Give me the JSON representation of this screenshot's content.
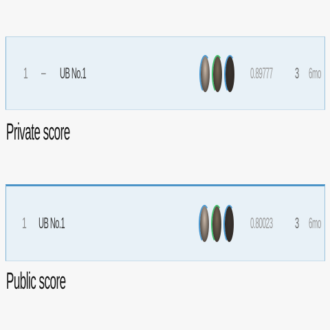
{
  "sections": [
    {
      "id": "private",
      "caption": "Private score",
      "row": {
        "rank": "1",
        "delta": "–",
        "team": "UB No.1",
        "score": "0.89777",
        "entries": "3",
        "last": "6mo",
        "avatars": [
          {
            "icon": "user-avatar-icon",
            "ring": "#4a9ad4",
            "fill": "#c9b8a8"
          },
          {
            "icon": "user-avatar-icon",
            "ring": "#3fbf6a",
            "fill": "#7a6a58"
          },
          {
            "icon": "user-avatar-icon",
            "ring": "#4a9ad4",
            "fill": "#3a3430"
          }
        ]
      }
    },
    {
      "id": "public",
      "caption": "Public score",
      "row": {
        "rank": "1",
        "delta": "",
        "team": "UB No.1",
        "score": "0.80023",
        "entries": "3",
        "last": "6mo",
        "avatars": [
          {
            "icon": "user-avatar-icon",
            "ring": "#4a9ad4",
            "fill": "#c9b8a8"
          },
          {
            "icon": "user-avatar-icon",
            "ring": "#3fbf6a",
            "fill": "#7a6a58"
          },
          {
            "icon": "user-avatar-icon",
            "ring": "#4a9ad4",
            "fill": "#3a3430"
          }
        ]
      }
    }
  ]
}
